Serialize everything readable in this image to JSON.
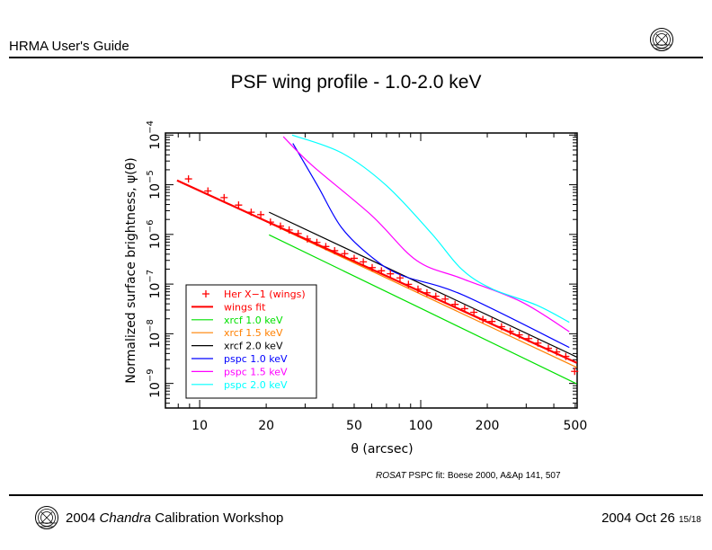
{
  "header": {
    "title": "HRMA User's Guide"
  },
  "slide_title": "PSF wing profile - 1.0-2.0 keV",
  "credit": {
    "italic": "ROSAT",
    "text": " PSPC fit: Boese 2000, A&Ap 141, 507"
  },
  "footer": {
    "year": "2004 ",
    "italic": "Chandra",
    "rest": " Calibration Workshop",
    "date": "2004 Oct 26 ",
    "page": "15/18"
  },
  "logo_text": "Chandra X-ray Center",
  "chart_data": {
    "type": "line",
    "title": "PSF wing profile - 1.0-2.0 keV",
    "xlabel": "θ (arcsec)",
    "ylabel": "Normalized surface brightness, ψ(θ)",
    "xscale": "log",
    "yscale": "log",
    "xlim": [
      7,
      510
    ],
    "ylim": [
      3.2e-10,
      0.00011
    ],
    "xticks": [
      10,
      20,
      50,
      100,
      200,
      500
    ],
    "xtick_labels": [
      "10",
      "20",
      "50",
      "100",
      "200",
      "500"
    ],
    "yticks": [
      1e-09,
      1e-08,
      1e-07,
      1e-06,
      1e-05,
      0.0001
    ],
    "ytick_labels": [
      "10",
      "10",
      "10",
      "10",
      "10",
      "10"
    ],
    "ytick_exponents": [
      "−9",
      "−8",
      "−7",
      "−6",
      "−5",
      "−4"
    ],
    "grid": false,
    "legend_placement": "bottom-left",
    "series": [
      {
        "name": "Her X−1 (wings)",
        "style": "marker-plus",
        "color": "#ff0000",
        "points": [
          [
            8.9,
            1.31e-05
          ],
          [
            10.9,
            7.5e-06
          ],
          [
            12.9,
            5.5e-06
          ],
          [
            15.0,
            3.9e-06
          ],
          [
            17.1,
            2.8e-06
          ],
          [
            18.9,
            2.5e-06
          ],
          [
            20.9,
            1.77e-06
          ],
          [
            23.2,
            1.47e-06
          ],
          [
            25.4,
            1.23e-06
          ],
          [
            27.9,
            1.04e-06
          ],
          [
            30.7,
            8.1e-07
          ],
          [
            33.9,
            6.9e-07
          ],
          [
            37.2,
            5.7e-07
          ],
          [
            40.8,
            4.7e-07
          ],
          [
            45.3,
            4.1e-07
          ],
          [
            50.0,
            3.3e-07
          ],
          [
            55.0,
            2.8e-07
          ],
          [
            60.3,
            2.15e-07
          ],
          [
            66.4,
            1.85e-07
          ],
          [
            72.9,
            1.61e-07
          ],
          [
            80.6,
            1.33e-07
          ],
          [
            88.0,
            9.9e-08
          ],
          [
            97.2,
            7.9e-08
          ],
          [
            106.7,
            6.7e-08
          ],
          [
            117,
            5.7e-08
          ],
          [
            129,
            5e-08
          ],
          [
            143,
            3.9e-08
          ],
          [
            158,
            3.2e-08
          ],
          [
            174,
            2.7e-08
          ],
          [
            191,
            1.94e-08
          ],
          [
            210,
            1.77e-08
          ],
          [
            232,
            1.39e-08
          ],
          [
            254,
            1.12e-08
          ],
          [
            279,
            9.5e-09
          ],
          [
            308,
            8e-09
          ],
          [
            339,
            6.5e-09
          ],
          [
            378,
            5.1e-09
          ],
          [
            412,
            4.3e-09
          ],
          [
            453,
            3.5e-09
          ],
          [
            497,
            1.75e-09
          ]
        ]
      },
      {
        "name": "wings fit",
        "style": "line-thick",
        "color": "#ff0000",
        "points": [
          [
            7.9,
            1.22e-05
          ],
          [
            20,
            1.85e-06
          ],
          [
            508,
            2.6e-09
          ]
        ]
      },
      {
        "name": "xrcf 1.0 keV",
        "style": "line",
        "color": "#00e000",
        "points": [
          [
            20.6,
            9.8e-07
          ],
          [
            508,
            9.8e-10
          ]
        ]
      },
      {
        "name": "xrcf 1.5 keV",
        "style": "line",
        "color": "#ff8000",
        "points": [
          [
            20.6,
            1.7e-06
          ],
          [
            508,
            2.1e-09
          ]
        ]
      },
      {
        "name": "xrcf 2.0 keV",
        "style": "line",
        "color": "#000000",
        "points": [
          [
            20.6,
            2.8e-06
          ],
          [
            508,
            3.4e-09
          ]
        ]
      },
      {
        "name": "pspc 1.0 keV",
        "style": "line",
        "color": "#0000ff",
        "points": [
          [
            26.4,
            6.8e-05
          ],
          [
            34.2,
            9.5e-06
          ],
          [
            43.8,
            1.38e-06
          ],
          [
            60,
            3.5e-07
          ],
          [
            81.9,
            1.5e-07
          ],
          [
            153,
            6.2e-08
          ],
          [
            470,
            5.3e-09
          ]
        ]
      },
      {
        "name": "pspc 1.5 keV",
        "style": "line",
        "color": "#ff00ff",
        "points": [
          [
            23.9,
            9.3e-05
          ],
          [
            32.1,
            2.5e-05
          ],
          [
            60,
            2.4e-06
          ],
          [
            95.7,
            3e-07
          ],
          [
            153,
            1.3e-07
          ],
          [
            285,
            4.4e-08
          ],
          [
            470,
            1.1e-08
          ]
        ]
      },
      {
        "name": "pspc 2.0 keV",
        "style": "line",
        "color": "#00ffff",
        "points": [
          [
            26.2,
            0.0001
          ],
          [
            43.8,
            4.4e-05
          ],
          [
            70.2,
            9.5e-06
          ],
          [
            112,
            1.04e-06
          ],
          [
            153,
            2e-07
          ],
          [
            209,
            8.1e-08
          ],
          [
            333,
            3.8e-08
          ],
          [
            470,
            1.7e-08
          ]
        ]
      }
    ]
  }
}
